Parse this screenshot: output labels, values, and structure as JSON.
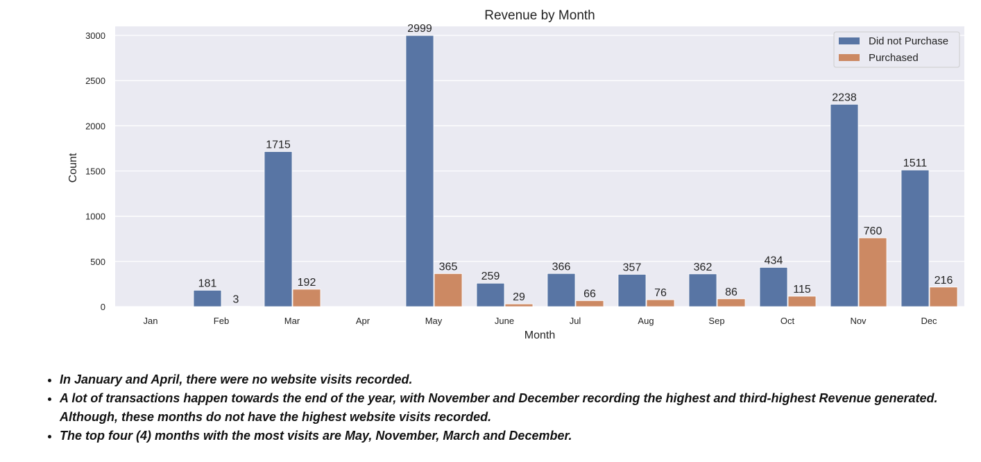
{
  "chart_data": {
    "type": "bar",
    "title": "Revenue by Month",
    "xlabel": "Month",
    "ylabel": "Count",
    "ylim": [
      0,
      3100
    ],
    "yticks": [
      0,
      500,
      1000,
      1500,
      2000,
      2500,
      3000
    ],
    "grid": true,
    "legend_position": "top-right",
    "categories": [
      "Jan",
      "Feb",
      "Mar",
      "Apr",
      "May",
      "June",
      "Jul",
      "Aug",
      "Sep",
      "Oct",
      "Nov",
      "Dec"
    ],
    "series": [
      {
        "name": "Did not Purchase",
        "color": "#5875a4",
        "values": [
          null,
          181,
          1715,
          null,
          2999,
          259,
          366,
          357,
          362,
          434,
          2238,
          1511
        ]
      },
      {
        "name": "Purchased",
        "color": "#cc8963",
        "values": [
          null,
          3,
          192,
          null,
          365,
          29,
          66,
          76,
          86,
          115,
          760,
          216
        ]
      }
    ]
  },
  "notes": [
    "In January and April, there were no website visits recorded.",
    "A lot of transactions happen towards the end of the year, with November and December recording the highest and third-highest Revenue generated. Although, these months do not have the highest website visits recorded.",
    "The top four (4) months with the most visits are May, November, March and December."
  ],
  "colors": {
    "plot_background": "#eaeaf2",
    "grid": "#ffffff"
  }
}
